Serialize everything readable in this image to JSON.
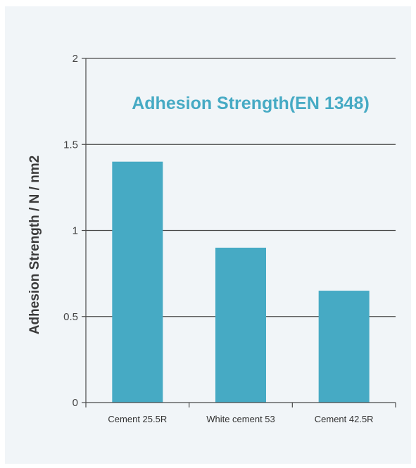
{
  "chart_data": {
    "type": "bar",
    "title": "Adhesion Strength(EN 1348)",
    "xlabel": "",
    "ylabel": "Adhesion Strength / N / nm2",
    "categories": [
      "Cement 25.5R",
      "White cement 53",
      "Cement 42.5R"
    ],
    "values": [
      1.4,
      0.9,
      0.65
    ],
    "ylim": [
      0,
      2
    ],
    "yticks": [
      "0",
      "0.5",
      "1",
      "1.5",
      "2"
    ],
    "grid": true,
    "bar_color": "#46aac4",
    "background_color": "#f1f5f8",
    "title_color": "#46aac4"
  }
}
